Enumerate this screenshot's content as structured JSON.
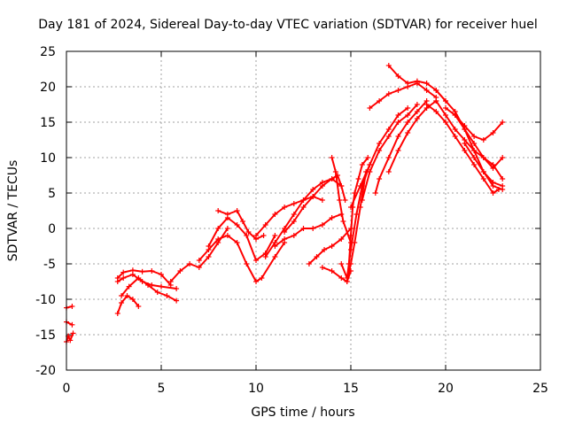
{
  "chart_data": {
    "type": "scatter",
    "title": "Day 181 of 2024, Sidereal Day-to-day VTEC variation (SDTVAR) for receiver huel",
    "xlabel": "GPS time / hours",
    "ylabel": "SDTVAR / TECUs",
    "xlim": [
      0,
      25
    ],
    "ylim": [
      -20,
      25
    ],
    "xticks": [
      0,
      5,
      10,
      15,
      20,
      25
    ],
    "yticks": [
      -20,
      -15,
      -10,
      -5,
      0,
      5,
      10,
      15,
      20,
      25
    ],
    "grid": true,
    "marker": "plus",
    "color": "#ff0000",
    "series": [
      {
        "name": "trace-1",
        "x": [
          0.0,
          0.3
        ],
        "y": [
          -11.2,
          -11.0
        ]
      },
      {
        "name": "trace-2",
        "x": [
          0.0,
          0.3
        ],
        "y": [
          -13.2,
          -13.6
        ]
      },
      {
        "name": "trace-3",
        "x": [
          0.0,
          0.1,
          0.2,
          0.35
        ],
        "y": [
          -16.0,
          -15.2,
          -15.8,
          -14.8
        ]
      },
      {
        "name": "trace-4",
        "x": [
          2.7,
          2.9,
          3.2,
          3.5,
          3.8
        ],
        "y": [
          -12.0,
          -10.5,
          -9.5,
          -10.0,
          -11.0
        ]
      },
      {
        "name": "trace-5",
        "x": [
          2.7,
          3.0,
          3.5,
          4.0,
          4.5,
          5.0,
          5.5
        ],
        "y": [
          -7.0,
          -6.2,
          -5.9,
          -6.1,
          -6.0,
          -6.5,
          -8.0
        ]
      },
      {
        "name": "trace-6",
        "x": [
          2.7,
          3.0,
          3.5,
          4.0,
          4.5,
          5.0,
          5.8
        ],
        "y": [
          -7.5,
          -7.0,
          -6.5,
          -7.5,
          -8.0,
          -8.2,
          -8.5
        ]
      },
      {
        "name": "trace-7",
        "x": [
          2.9,
          3.3,
          3.8,
          4.3,
          4.8,
          5.3,
          5.8
        ],
        "y": [
          -9.5,
          -8.2,
          -7.0,
          -8.0,
          -9.0,
          -9.5,
          -10.2
        ]
      },
      {
        "name": "trace-8",
        "x": [
          5.5,
          6.0,
          6.5,
          7.0,
          7.5,
          8.0,
          8.5
        ],
        "y": [
          -7.5,
          -6.0,
          -5.0,
          -5.5,
          -4.0,
          -2.0,
          0.0
        ]
      },
      {
        "name": "trace-9",
        "x": [
          7.0,
          7.5,
          8.0,
          8.5,
          9.0,
          9.5,
          10.0,
          10.3,
          11.0,
          11.5
        ],
        "y": [
          -4.5,
          -3.0,
          -1.5,
          -1.0,
          -2.0,
          -5.0,
          -7.5,
          -7.0,
          -4.0,
          -2.0
        ]
      },
      {
        "name": "trace-10",
        "x": [
          7.5,
          8.0,
          8.5,
          9.0,
          9.5,
          10.0,
          10.5,
          11.0
        ],
        "y": [
          -2.5,
          0.0,
          1.5,
          0.5,
          -1.0,
          -4.5,
          -3.5,
          -1.0
        ]
      },
      {
        "name": "trace-11",
        "x": [
          8.0,
          8.5,
          9.0,
          9.3,
          9.6,
          10.0,
          10.4
        ],
        "y": [
          2.5,
          2.0,
          2.5,
          1.0,
          -0.5,
          -1.5,
          -1.0
        ]
      },
      {
        "name": "trace-12",
        "x": [
          10.0,
          10.5,
          11.0,
          11.5,
          12.0,
          12.5,
          13.0,
          13.5
        ],
        "y": [
          -1.0,
          0.5,
          2.0,
          3.0,
          3.5,
          4.0,
          4.5,
          4.0
        ]
      },
      {
        "name": "trace-13",
        "x": [
          10.5,
          11.0,
          11.5,
          12.0,
          12.5,
          13.0,
          13.5,
          14.0,
          14.5
        ],
        "y": [
          -4.0,
          -2.0,
          0.0,
          2.0,
          4.0,
          5.5,
          6.5,
          7.0,
          6.0
        ]
      },
      {
        "name": "trace-14",
        "x": [
          11.0,
          11.5,
          12.0,
          12.5,
          13.0,
          13.5,
          14.0,
          14.5
        ],
        "y": [
          -2.5,
          -1.5,
          -1.0,
          0.0,
          0.0,
          0.5,
          1.5,
          2.0
        ]
      },
      {
        "name": "trace-15",
        "x": [
          11.5,
          12.0,
          12.5,
          13.0,
          13.5,
          14.0,
          14.3,
          14.5,
          14.7
        ],
        "y": [
          -0.5,
          1.0,
          3.0,
          4.5,
          6.0,
          7.0,
          7.5,
          6.0,
          4.0
        ]
      },
      {
        "name": "trace-16",
        "x": [
          12.8,
          13.2,
          13.6,
          14.0,
          14.5,
          15.0
        ],
        "y": [
          -5.0,
          -4.0,
          -3.0,
          -2.5,
          -1.5,
          0.0
        ]
      },
      {
        "name": "trace-17",
        "x": [
          14.0,
          14.2,
          14.4,
          14.6,
          15.0
        ],
        "y": [
          10.0,
          8.0,
          4.0,
          1.0,
          -2.0
        ]
      },
      {
        "name": "trace-18",
        "x": [
          13.5,
          14.0,
          14.5,
          14.8,
          15.0
        ],
        "y": [
          -5.5,
          -6.0,
          -7.0,
          -7.5,
          -6.0
        ]
      },
      {
        "name": "trace-19",
        "x": [
          14.5,
          14.8,
          15.0,
          15.3,
          15.6,
          16.0
        ],
        "y": [
          -5.0,
          -7.0,
          -3.0,
          2.0,
          6.0,
          9.0
        ]
      },
      {
        "name": "trace-20",
        "x": [
          14.8,
          15.0,
          15.2,
          15.5,
          15.8
        ],
        "y": [
          -7.5,
          -5.0,
          -2.0,
          3.0,
          8.0
        ]
      },
      {
        "name": "trace-21",
        "x": [
          14.9,
          15.0,
          15.1,
          15.2,
          15.4,
          15.6,
          15.9
        ],
        "y": [
          -5.0,
          -1.0,
          3.0,
          5.0,
          7.0,
          9.0,
          10.0
        ]
      },
      {
        "name": "trace-22",
        "x": [
          15.0,
          15.5,
          16.0,
          16.5,
          17.0,
          17.5,
          18.0
        ],
        "y": [
          3.0,
          6.0,
          9.0,
          12.0,
          14.0,
          16.0,
          17.0
        ]
      },
      {
        "name": "trace-23",
        "x": [
          15.6,
          16.0,
          16.5,
          17.0,
          17.5,
          18.0,
          18.5
        ],
        "y": [
          4.0,
          8.0,
          11.0,
          13.0,
          15.0,
          16.0,
          17.5
        ]
      },
      {
        "name": "trace-24",
        "x": [
          16.3,
          16.5,
          17.0,
          17.5,
          18.0,
          18.5,
          19.0
        ],
        "y": [
          5.0,
          7.0,
          10.0,
          13.0,
          15.0,
          16.5,
          18.0
        ]
      },
      {
        "name": "trace-25",
        "x": [
          17.0,
          17.5,
          18.0,
          18.5,
          19.0,
          19.5
        ],
        "y": [
          8.0,
          11.0,
          13.5,
          15.5,
          17.0,
          18.0
        ]
      },
      {
        "name": "trace-26",
        "x": [
          16.0,
          16.5,
          17.0,
          17.5,
          18.0,
          18.5,
          19.0,
          19.5
        ],
        "y": [
          17.0,
          18.0,
          19.0,
          19.5,
          20.0,
          20.5,
          19.5,
          18.5
        ]
      },
      {
        "name": "trace-27",
        "x": [
          17.0,
          17.5,
          18.0,
          18.5,
          19.0,
          19.5,
          20.0
        ],
        "y": [
          23.0,
          21.5,
          20.5,
          20.8,
          20.5,
          19.5,
          18.0
        ]
      },
      {
        "name": "trace-28",
        "x": [
          19.5,
          20.0,
          20.5,
          21.0,
          21.5,
          22.0,
          22.5,
          23.0
        ],
        "y": [
          19.5,
          18.0,
          16.5,
          14.0,
          11.0,
          8.0,
          6.0,
          5.5
        ]
      },
      {
        "name": "trace-29",
        "x": [
          19.0,
          19.5,
          20.0,
          20.5,
          21.0,
          21.5,
          22.0,
          22.5,
          22.8
        ],
        "y": [
          17.5,
          16.5,
          15.0,
          13.0,
          11.0,
          9.0,
          7.0,
          5.0,
          5.5
        ]
      },
      {
        "name": "trace-30",
        "x": [
          19.5,
          20.0,
          20.5,
          21.0,
          21.5,
          22.0,
          22.5,
          23.0
        ],
        "y": [
          18.0,
          16.0,
          14.0,
          12.5,
          11.0,
          10.0,
          9.0,
          7.0
        ]
      },
      {
        "name": "trace-31",
        "x": [
          20.0,
          20.5,
          21.0,
          21.5,
          22.0,
          22.5,
          23.0
        ],
        "y": [
          17.0,
          16.0,
          14.0,
          12.0,
          10.0,
          8.5,
          10.0
        ]
      },
      {
        "name": "trace-32",
        "x": [
          20.5,
          21.0,
          21.5,
          22.0,
          22.5,
          23.0
        ],
        "y": [
          16.0,
          14.5,
          13.0,
          12.5,
          13.5,
          15.0
        ]
      },
      {
        "name": "trace-33",
        "x": [
          21.0,
          21.5,
          22.0,
          22.5,
          23.0
        ],
        "y": [
          12.0,
          10.0,
          8.0,
          6.5,
          6.0
        ]
      }
    ]
  }
}
